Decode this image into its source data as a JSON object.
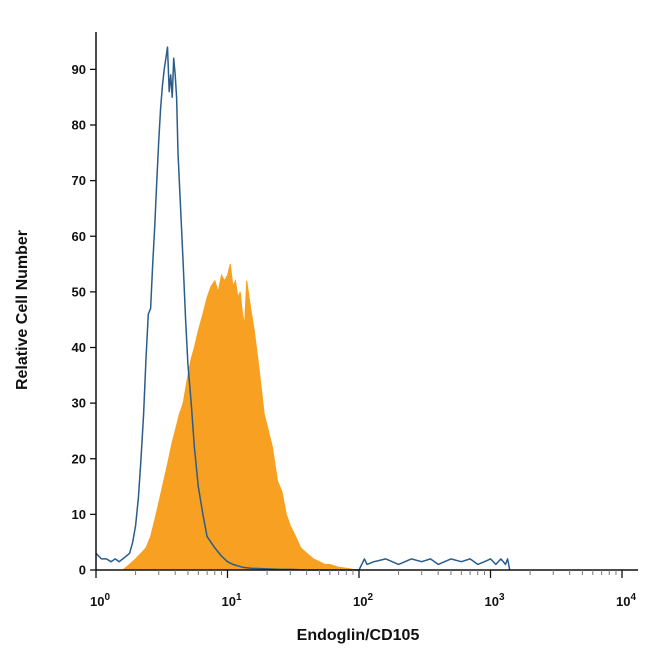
{
  "chart_data": {
    "type": "area",
    "xlabel": "Endoglin/CD105",
    "ylabel": "Relative Cell Number",
    "x_scale": "log",
    "xlim": [
      1,
      10000
    ],
    "ylim": [
      0,
      96
    ],
    "y_ticks": [
      "0",
      "10",
      "20",
      "30",
      "40",
      "50",
      "60",
      "70",
      "80",
      "90"
    ],
    "x_ticks": [
      {
        "base": "10",
        "exp": "0"
      },
      {
        "base": "10",
        "exp": "1"
      },
      {
        "base": "10",
        "exp": "2"
      },
      {
        "base": "10",
        "exp": "3"
      },
      {
        "base": "10",
        "exp": "4"
      }
    ],
    "grid": false,
    "series": [
      {
        "style": "outline",
        "color": "#2b5c8a",
        "x": [
          1.0,
          1.1,
          1.2,
          1.3,
          1.4,
          1.5,
          1.6,
          1.7,
          1.8,
          1.9,
          2.0,
          2.1,
          2.2,
          2.3,
          2.4,
          2.5,
          2.6,
          2.7,
          2.8,
          2.9,
          3.0,
          3.1,
          3.2,
          3.3,
          3.4,
          3.5,
          3.6,
          3.7,
          3.8,
          3.9,
          4.0,
          4.1,
          4.2,
          4.4,
          4.6,
          4.8,
          5.0,
          5.3,
          5.6,
          6.0,
          6.5,
          7.0,
          8.0,
          9.0,
          10.0,
          11.0,
          13.0,
          15.0,
          20.0,
          25.0,
          30.0,
          40.0,
          50.0,
          70.0,
          100.0,
          110.0,
          115.0,
          130.0,
          160.0,
          200.0,
          250.0,
          300.0,
          350.0,
          400.0,
          500.0,
          600.0,
          700.0,
          800.0,
          900.0,
          1000.0,
          1100.0,
          1200.0,
          1300.0,
          1350.0,
          1400.0
        ],
        "y": [
          3,
          2,
          2,
          1.5,
          2,
          1.5,
          2,
          2.5,
          3,
          5,
          8,
          13,
          20,
          28,
          38,
          46,
          47,
          55,
          62,
          70,
          77,
          83,
          87,
          90,
          92,
          94,
          86,
          89,
          85,
          92,
          89,
          85,
          75,
          65,
          55,
          45,
          37,
          30,
          22,
          15,
          10,
          6,
          4,
          2.5,
          1.5,
          1,
          0.5,
          0.3,
          0.2,
          0.1,
          0.1,
          0,
          0,
          0,
          0,
          2,
          1,
          1.5,
          2,
          1,
          2,
          1.5,
          2,
          1,
          2,
          1.5,
          2,
          1,
          1.5,
          2,
          1,
          2,
          1,
          2,
          0
        ]
      },
      {
        "style": "filled",
        "color": "#f7a021",
        "x": [
          1.6,
          1.8,
          2.0,
          2.2,
          2.4,
          2.6,
          2.8,
          3.0,
          3.2,
          3.5,
          3.8,
          4.0,
          4.3,
          4.6,
          5.0,
          5.3,
          5.6,
          6.0,
          6.5,
          7.0,
          7.5,
          8.0,
          8.5,
          9.0,
          9.5,
          10.0,
          10.5,
          11.0,
          11.5,
          12.0,
          12.5,
          13.0,
          13.5,
          14.0,
          15.0,
          16.0,
          17.0,
          18.0,
          19.0,
          20.0,
          22.0,
          24.0,
          26.0,
          28.0,
          30.0,
          33.0,
          36.0,
          40.0,
          45.0,
          50.0,
          55.0,
          60.0,
          70.0,
          80.0,
          90.0,
          100.0
        ],
        "y": [
          0,
          1,
          2,
          3,
          4,
          6,
          9,
          12,
          15,
          19,
          23,
          25,
          28,
          30,
          35,
          38,
          40,
          43,
          46,
          49,
          51,
          52,
          50,
          53,
          52,
          53,
          55,
          51,
          52,
          49,
          50,
          46,
          44,
          52,
          47,
          43,
          38,
          33,
          28,
          26,
          22,
          16,
          14,
          10,
          8,
          6,
          4,
          3,
          2,
          1.5,
          1,
          1,
          0.5,
          0.3,
          0.1,
          0
        ]
      }
    ]
  }
}
